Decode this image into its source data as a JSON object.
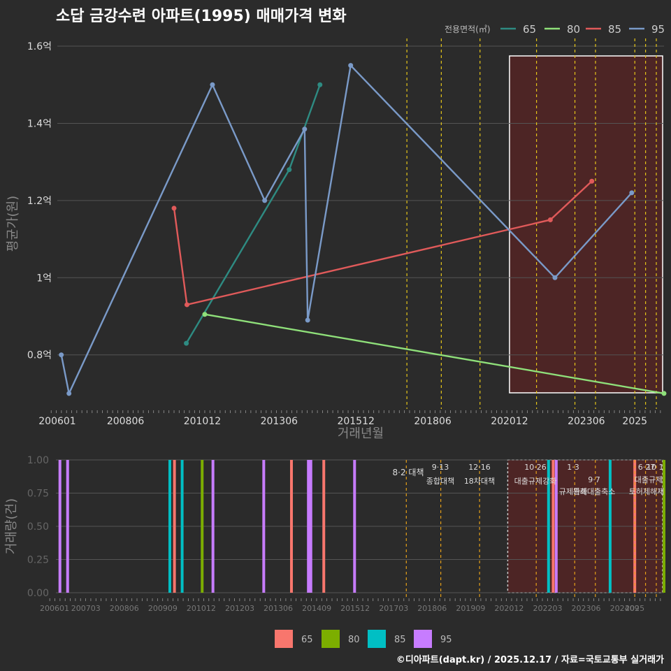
{
  "title": "소답 금강수련 아파트(1995) 매매가격 변화",
  "footer": "©디아파트(dapt.kr) / 2025.12.17 / 자료=국토교통부 실거래가",
  "colors": {
    "65": "#2e8b82",
    "80": "#8fe07a",
    "85": "#e05a5a",
    "95": "#7a9ac8"
  },
  "bar_colors": {
    "65": "#f8766d",
    "80": "#7cae00",
    "85": "#00bfc4",
    "95": "#c77cff"
  },
  "chart_data": [
    {
      "type": "line",
      "title": "소답 금강수련 아파트(1995) 매매가격 변화",
      "xlabel": "거래년월",
      "ylabel": "평균가(원)",
      "legend_title": "전용면적(㎡)",
      "xlim": [
        2006.2,
        2025.95
      ],
      "ylim": [
        0.66,
        1.62
      ],
      "x_ticks": [
        {
          "v": 2006.0,
          "label": "200601"
        },
        {
          "v": 2008.42,
          "label": "200806"
        },
        {
          "v": 2010.92,
          "label": "201012"
        },
        {
          "v": 2013.42,
          "label": "201306"
        },
        {
          "v": 2015.92,
          "label": "201512"
        },
        {
          "v": 2018.42,
          "label": "201806"
        },
        {
          "v": 2020.92,
          "label": "202012"
        },
        {
          "v": 2023.42,
          "label": "202306"
        },
        {
          "v": 2025.0,
          "label": "2025"
        }
      ],
      "y_ticks": [
        {
          "v": 0.8,
          "label": "0.8억"
        },
        {
          "v": 1.0,
          "label": "1억"
        },
        {
          "v": 1.2,
          "label": "1.2억"
        },
        {
          "v": 1.4,
          "label": "1.4억"
        },
        {
          "v": 1.6,
          "label": "1.6억"
        }
      ],
      "series": [
        {
          "name": "65",
          "points": [
            [
              2010.4,
              0.83
            ],
            [
              2013.75,
              1.28
            ],
            [
              2014.75,
              1.5
            ]
          ]
        },
        {
          "name": "80",
          "points": [
            [
              2011.0,
              0.905
            ],
            [
              2025.95,
              0.7
            ]
          ]
        },
        {
          "name": "85",
          "points": [
            [
              2010.0,
              1.18
            ],
            [
              2010.42,
              0.93
            ],
            [
              2022.25,
              1.15
            ],
            [
              2023.6,
              1.25
            ]
          ]
        },
        {
          "name": "95",
          "points": [
            [
              2006.33,
              0.8
            ],
            [
              2006.58,
              0.7
            ],
            [
              2011.25,
              1.5
            ],
            [
              2012.95,
              1.2
            ],
            [
              2014.25,
              1.385
            ],
            [
              2014.35,
              0.89
            ],
            [
              2015.75,
              1.55
            ],
            [
              2022.4,
              1.0
            ],
            [
              2024.9,
              1.22
            ]
          ]
        }
      ],
      "policy_lines": [
        2017.58,
        2018.7,
        2019.96,
        2021.8,
        2023.05,
        2023.72,
        2025.0,
        2025.35,
        2025.7
      ],
      "highlight_range": [
        2020.92,
        2025.95
      ]
    },
    {
      "type": "bar",
      "xlabel": "",
      "ylabel": "거래량(건)",
      "xlim": [
        2006.2,
        2025.95
      ],
      "ylim": [
        0,
        1
      ],
      "x_ticks": [
        {
          "v": 2006.0,
          "label": "200601"
        },
        {
          "v": 2007.17,
          "label": "200703"
        },
        {
          "v": 2008.42,
          "label": "200806"
        },
        {
          "v": 2009.67,
          "label": "200909"
        },
        {
          "v": 2010.92,
          "label": "201012"
        },
        {
          "v": 2012.17,
          "label": "201203"
        },
        {
          "v": 2013.42,
          "label": "201306"
        },
        {
          "v": 2014.67,
          "label": "201409"
        },
        {
          "v": 2015.92,
          "label": "201512"
        },
        {
          "v": 2017.17,
          "label": "201703"
        },
        {
          "v": 2018.42,
          "label": "201806"
        },
        {
          "v": 2019.67,
          "label": "201909"
        },
        {
          "v": 2020.92,
          "label": "202012"
        },
        {
          "v": 2022.17,
          "label": "202203"
        },
        {
          "v": 2023.42,
          "label": "202306"
        },
        {
          "v": 2024.67,
          "label": "202409"
        },
        {
          "v": 2025.0,
          "label": "2025"
        }
      ],
      "y_ticks": [
        {
          "v": 0,
          "label": "0.00"
        },
        {
          "v": 0.25,
          "label": "0.25"
        },
        {
          "v": 0.5,
          "label": "0.50"
        },
        {
          "v": 0.75,
          "label": "0.75"
        },
        {
          "v": 1.0,
          "label": "1.00"
        }
      ],
      "bars": [
        {
          "x": 2006.33,
          "series": "95",
          "value": 1
        },
        {
          "x": 2006.58,
          "series": "95",
          "value": 1
        },
        {
          "x": 2009.9,
          "series": "85",
          "value": 1
        },
        {
          "x": 2010.05,
          "series": "65",
          "value": 1
        },
        {
          "x": 2010.3,
          "series": "85",
          "value": 1
        },
        {
          "x": 2010.95,
          "series": "80",
          "value": 1
        },
        {
          "x": 2011.3,
          "series": "95",
          "value": 1
        },
        {
          "x": 2012.95,
          "series": "95",
          "value": 1
        },
        {
          "x": 2013.85,
          "series": "65",
          "value": 1
        },
        {
          "x": 2014.4,
          "series": "95",
          "value": 1
        },
        {
          "x": 2014.48,
          "series": "95",
          "value": 1
        },
        {
          "x": 2014.9,
          "series": "65",
          "value": 1
        },
        {
          "x": 2015.9,
          "series": "95",
          "value": 1
        },
        {
          "x": 2022.2,
          "series": "85",
          "value": 1
        },
        {
          "x": 2022.35,
          "series": "65",
          "value": 1
        },
        {
          "x": 2022.45,
          "series": "95",
          "value": 1
        },
        {
          "x": 2024.2,
          "series": "85",
          "value": 1
        },
        {
          "x": 2025.0,
          "series": "65",
          "value": 1
        },
        {
          "x": 2025.95,
          "series": "80",
          "value": 1
        }
      ],
      "policies": [
        {
          "x": 2017.58,
          "date": "8·2",
          "label": "8·2 대책"
        },
        {
          "x": 2018.7,
          "date": "9·13",
          "label": "종합대책"
        },
        {
          "x": 2019.96,
          "date": "12·16",
          "label": "18차대책"
        },
        {
          "x": 2021.8,
          "date": "10·26",
          "label": "대출규제강화"
        },
        {
          "x": 2023.05,
          "date": "1·3",
          "label": "규제완화"
        },
        {
          "x": 2023.72,
          "date": "9·7",
          "label": "특례대출축소"
        },
        {
          "x": 2025.0,
          "date": "6·27",
          "label": "토허제해제"
        },
        {
          "x": 2025.35,
          "date": "10",
          "label": "대출규제"
        },
        {
          "x": 2025.7,
          "date": "1",
          "label": ""
        }
      ],
      "legend": [
        "65",
        "80",
        "85",
        "95"
      ]
    }
  ]
}
